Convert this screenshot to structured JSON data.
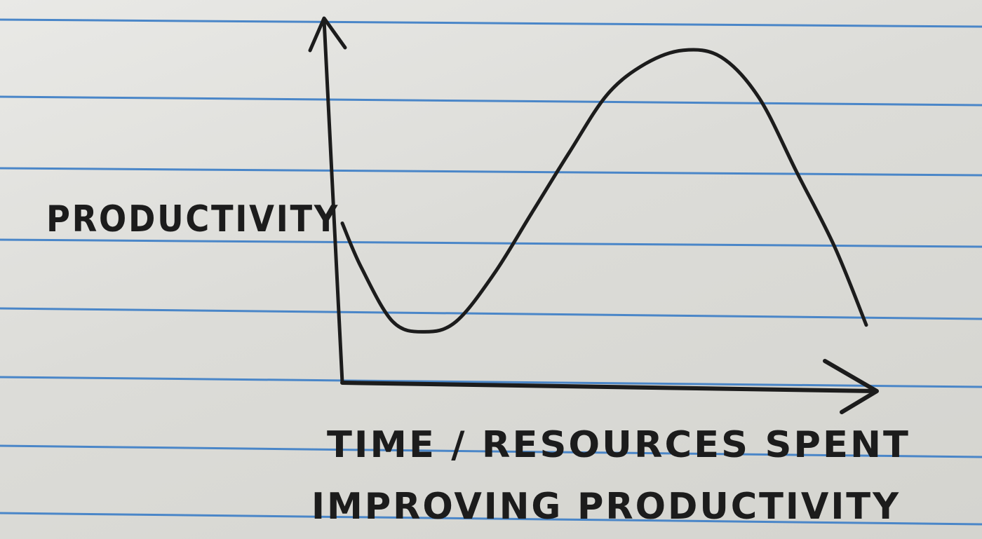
{
  "chart_data": {
    "type": "line",
    "title": "",
    "ylabel": "PRODUCTIVITY",
    "xlabel_line1": "TIME / RESOURCES  SPENT",
    "xlabel_line2": "IMPROVING  PRODUCTIVITY",
    "ticks": "none",
    "grid": false,
    "legend": "none",
    "xlim": [
      0,
      100
    ],
    "ylim": [
      0,
      100
    ],
    "series": [
      {
        "points": [
          [
            0,
            47
          ],
          [
            3,
            34
          ],
          [
            8,
            18
          ],
          [
            13,
            15
          ],
          [
            18,
            18
          ],
          [
            24,
            32
          ],
          [
            30,
            50
          ],
          [
            36,
            68
          ],
          [
            42,
            85
          ],
          [
            48,
            94
          ],
          [
            54,
            98
          ],
          [
            60,
            96
          ],
          [
            66,
            84
          ],
          [
            72,
            62
          ],
          [
            78,
            40
          ],
          [
            83,
            17
          ]
        ]
      }
    ]
  },
  "colors": {
    "ink": "#1c1c1c",
    "paper": "#dcdcd8",
    "rule_line": "#4a86c8"
  }
}
